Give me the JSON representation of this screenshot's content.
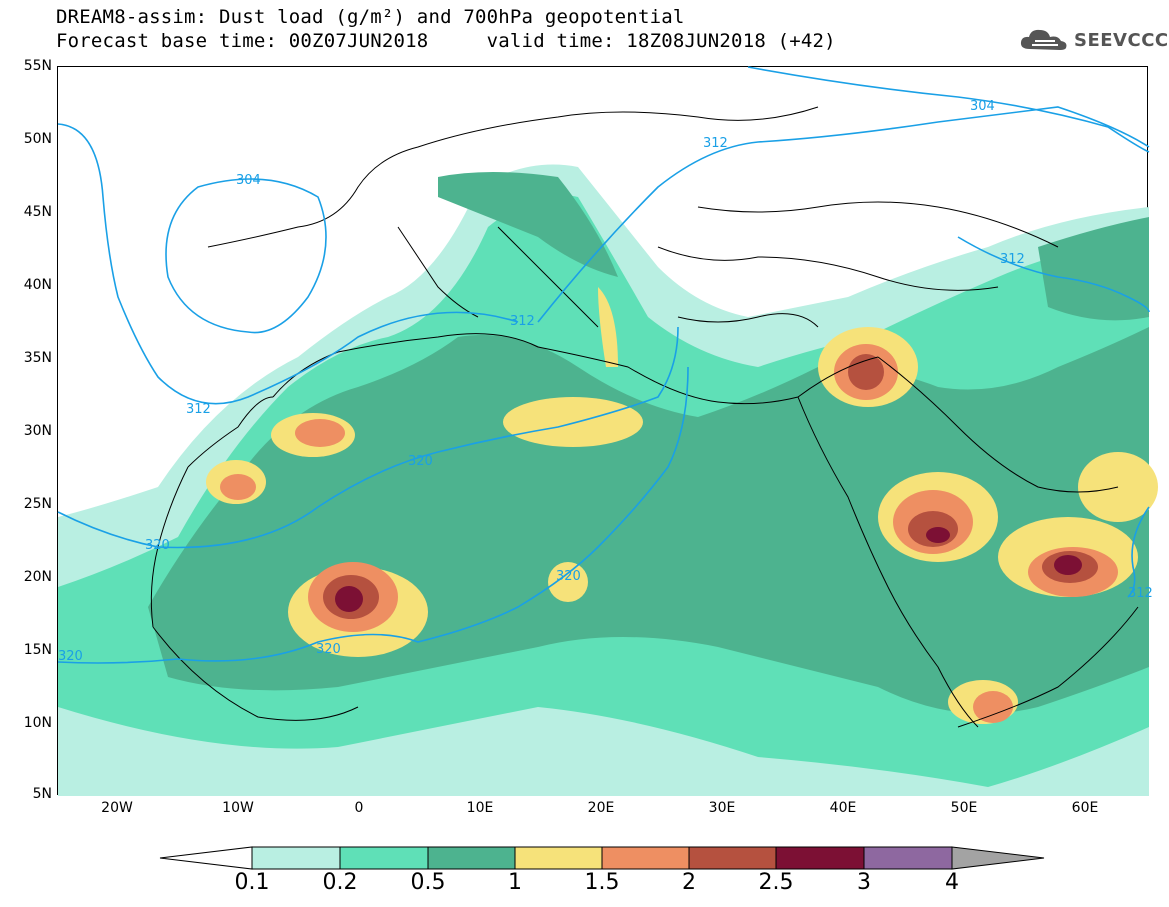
{
  "header": {
    "title_line1": "DREAM8-assim: Dust load (g/m²) and 700hPa geopotential",
    "title_line2": "Forecast base time: 00Z07JUN2018     valid time: 18Z08JUN2018 (+42)"
  },
  "logo": {
    "text": "SEEVCCC",
    "icon": "cloud-icon"
  },
  "map": {
    "lat_labels": [
      "55N",
      "50N",
      "45N",
      "40N",
      "35N",
      "30N",
      "25N",
      "20N",
      "15N",
      "10N",
      "5N"
    ],
    "lon_labels": [
      "20W",
      "10W",
      "0",
      "10E",
      "20E",
      "30E",
      "40E",
      "50E",
      "60E"
    ],
    "contour_labels": [
      "304",
      "312",
      "304",
      "312",
      "312",
      "312",
      "320",
      "320",
      "320",
      "320",
      "320",
      "312"
    ]
  },
  "colorbar": {
    "labels": [
      "0.1",
      "0.2",
      "0.5",
      "1",
      "1.5",
      "2",
      "2.5",
      "3",
      "4"
    ],
    "colors": [
      "#ffffff",
      "#b9efe2",
      "#5fe0b7",
      "#4db38f",
      "#f6e27a",
      "#ee8f62",
      "#b5513f",
      "#7c1034",
      "#8e68a0",
      "#a3a3a3"
    ]
  }
}
